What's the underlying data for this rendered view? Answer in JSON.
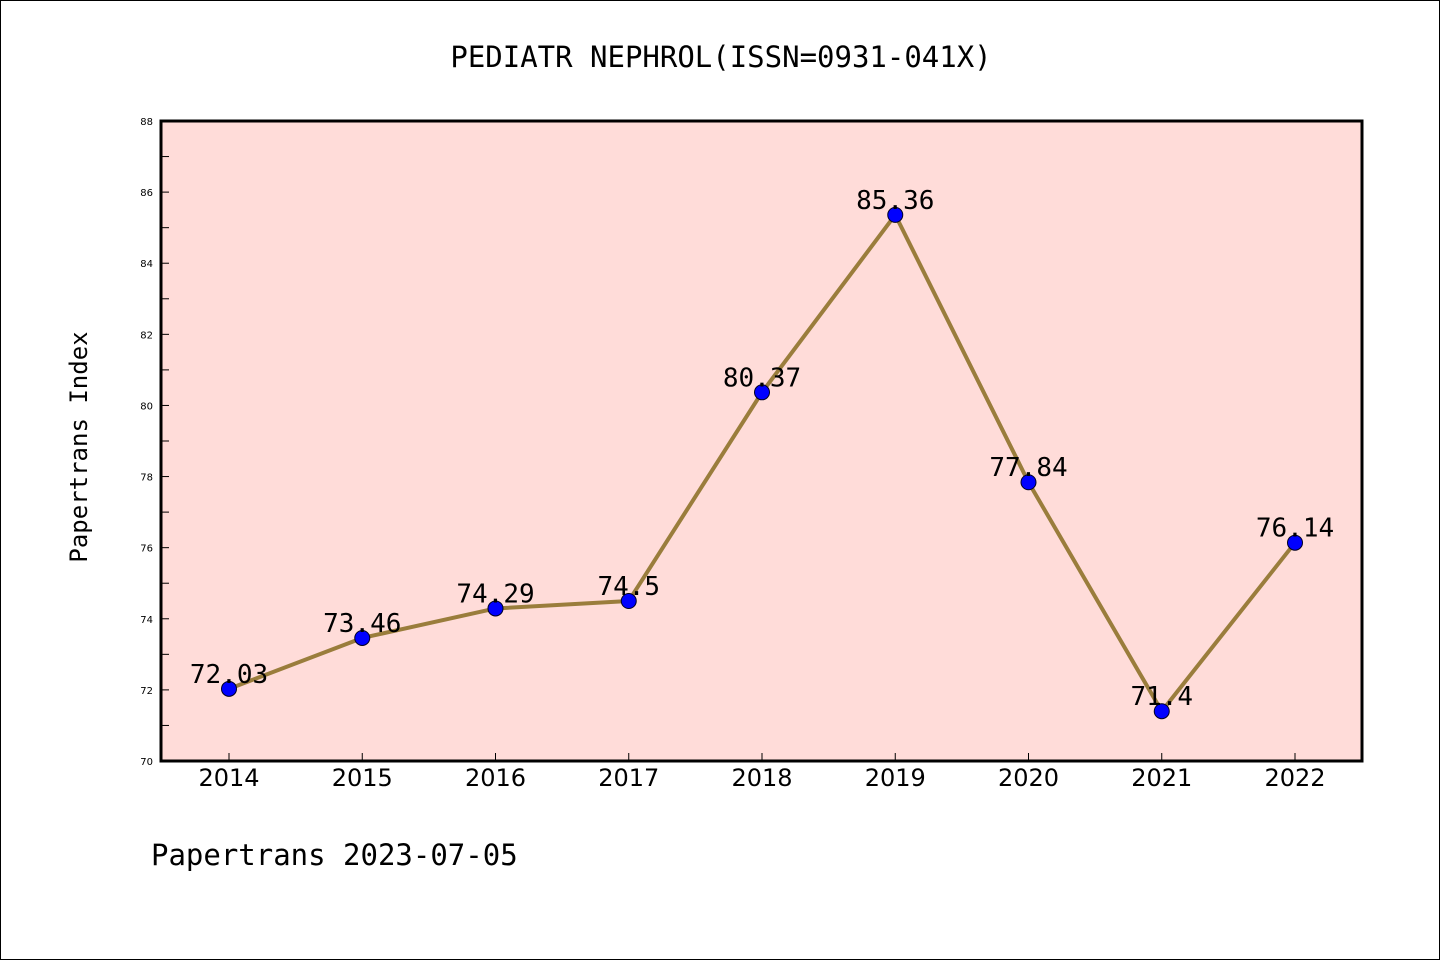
{
  "chart_data": {
    "type": "line",
    "title": "PEDIATR NEPHROL(ISSN=0931-041X)",
    "ylabel": "Papertrans Index",
    "xlabel": "",
    "footer": "Papertrans 2023-07-05",
    "categories": [
      "2014",
      "2015",
      "2016",
      "2017",
      "2018",
      "2019",
      "2020",
      "2021",
      "2022"
    ],
    "values": [
      72.03,
      73.46,
      74.29,
      74.5,
      80.37,
      85.36,
      77.84,
      71.4,
      76.14
    ],
    "data_labels": [
      "72.03",
      "73.46",
      "74.29",
      "74.5",
      "80.37",
      "85.36",
      "77.84",
      "71.4",
      "76.14"
    ],
    "ylim": [
      70,
      88
    ],
    "yticks": [
      "70",
      "72",
      "74",
      "76",
      "78",
      "80",
      "82",
      "84",
      "86",
      "88"
    ],
    "grid": false,
    "colors": {
      "plot_background": "#ffdcd9",
      "line": "#9a7d3c",
      "marker": "#0000ff"
    }
  }
}
